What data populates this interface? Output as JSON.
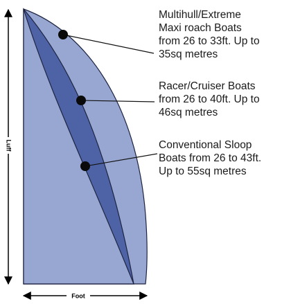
{
  "dimensions": {
    "luff_label": "Luff",
    "foot_label": "Foot"
  },
  "legend": [
    {
      "id": "multihull",
      "text": "Multihull/Extreme\nMaxi roach Boats\nfrom 26 to 33ft. Up to\n35sq metres",
      "fill": "#98a7d2"
    },
    {
      "id": "racer",
      "text": "Racer/Cruiser Boats\nfrom 26 to 40ft. Up to\n46sq metres",
      "fill": "#4e63a6"
    },
    {
      "id": "conventional",
      "text": "Conventional Sloop\nBoats from 26 to 43ft.\nUp to 55sq metres",
      "fill": "#98a7d2"
    }
  ],
  "colors": {
    "outline": "#1d2340",
    "marker": "#0a0a0a",
    "leader": "#111111"
  }
}
